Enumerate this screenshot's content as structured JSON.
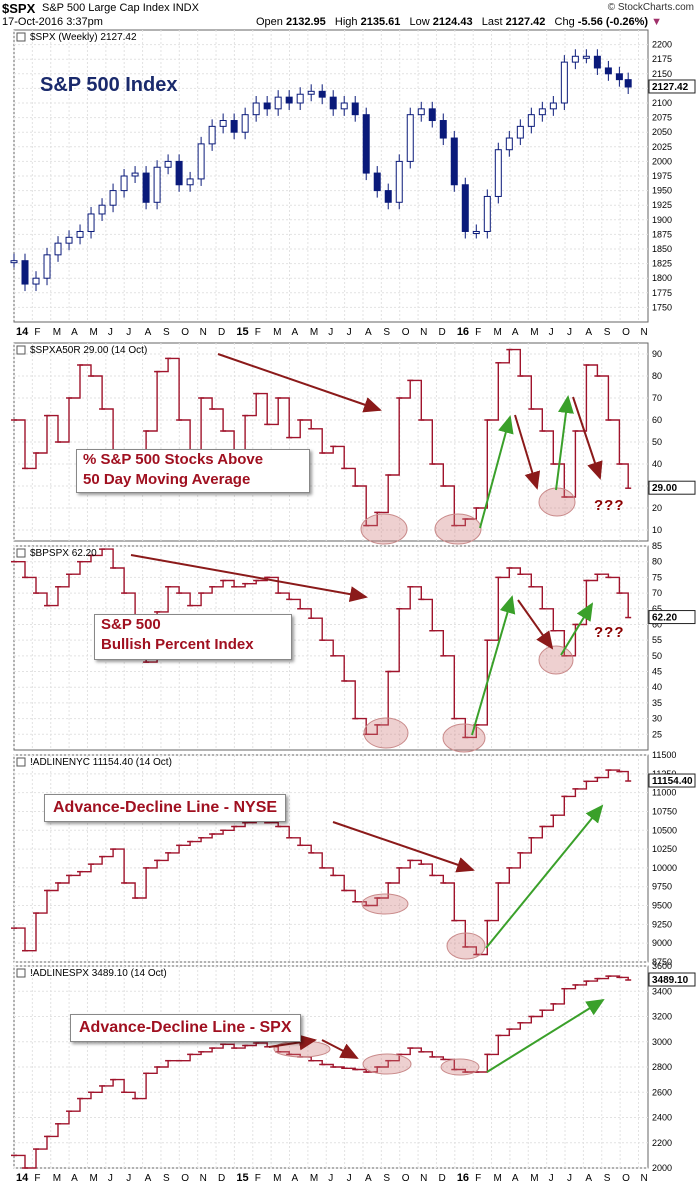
{
  "header": {
    "symbol": "$SPX",
    "name": "S&P 500 Large Cap Index INDX",
    "date": "17-Oct-2016 3:37pm",
    "open_label": "Open",
    "open": "2132.95",
    "high_label": "High",
    "high": "2135.61",
    "low_label": "Low",
    "low": "2124.43",
    "last_label": "Last",
    "last": "2127.42",
    "chg_label": "Chg",
    "chg": "-5.56 (-0.26%)",
    "watermark": "© StockCharts.com"
  },
  "x_axis": {
    "months": [
      "14",
      "F",
      "M",
      "A",
      "M",
      "J",
      "J",
      "A",
      "S",
      "O",
      "N",
      "D",
      "15",
      "F",
      "M",
      "A",
      "M",
      "J",
      "J",
      "A",
      "S",
      "O",
      "N",
      "D",
      "16",
      "F",
      "M",
      "A",
      "M",
      "J",
      "J",
      "A",
      "S",
      "O",
      "N"
    ]
  },
  "panels": {
    "spx": {
      "legend": "$SPX (Weekly) 2127.42",
      "title": "S&P 500 Index",
      "last": "2127.42"
    },
    "spxa50r": {
      "legend": "$SPXA50R 29.00 (14 Oct)",
      "label_line1": "% S&P 500 Stocks Above",
      "label_line2": "50 Day Moving Average",
      "last": "29.00",
      "note": "???"
    },
    "bpspx": {
      "legend": "$BPSPX 62.20",
      "label_line1": "S&P 500",
      "label_line2": "Bullish Percent Index",
      "last": "62.20",
      "note": "???"
    },
    "adnyse": {
      "legend": "!ADLINENYC 11154.40 (14 Oct)",
      "label": "Advance-Decline Line - NYSE",
      "last": "11154.40"
    },
    "adspx": {
      "legend": "!ADLINESPX 3489.10 (14 Oct)",
      "label": "Advance-Decline Line - SPX",
      "last": "3489.10"
    }
  },
  "chart_data": [
    {
      "type": "candlestick",
      "title": "S&P 500 Index",
      "ylim": [
        1725,
        2225
      ],
      "yticks": [
        1750,
        1775,
        1800,
        1825,
        1850,
        1875,
        1900,
        1925,
        1950,
        1975,
        2000,
        2025,
        2050,
        2075,
        2100,
        2125,
        2150,
        2175,
        2200
      ],
      "series": [
        {
          "name": "$SPX (Weekly)",
          "x": [
            2014.0,
            2014.05,
            2014.1,
            2014.15,
            2014.2,
            2014.25,
            2014.3,
            2014.35,
            2014.4,
            2014.45,
            2014.5,
            2014.55,
            2014.6,
            2014.65,
            2014.7,
            2014.75,
            2014.8,
            2014.85,
            2014.9,
            2014.95,
            2015.0,
            2015.05,
            2015.1,
            2015.15,
            2015.2,
            2015.25,
            2015.3,
            2015.35,
            2015.4,
            2015.45,
            2015.5,
            2015.55,
            2015.6,
            2015.65,
            2015.7,
            2015.75,
            2015.8,
            2015.85,
            2015.9,
            2015.95,
            2016.0,
            2016.05,
            2016.1,
            2016.15,
            2016.2,
            2016.25,
            2016.3,
            2016.35,
            2016.4,
            2016.45,
            2016.5,
            2016.55,
            2016.6,
            2016.65,
            2016.7,
            2016.75,
            2016.79
          ],
          "values": [
            1830,
            1790,
            1800,
            1840,
            1860,
            1870,
            1880,
            1910,
            1925,
            1950,
            1975,
            1980,
            1930,
            1990,
            2000,
            1960,
            1970,
            2030,
            2060,
            2070,
            2050,
            2080,
            2100,
            2090,
            2110,
            2100,
            2115,
            2120,
            2110,
            2090,
            2100,
            2080,
            1980,
            1950,
            1930,
            2000,
            2080,
            2090,
            2070,
            2040,
            1960,
            1880,
            1880,
            1940,
            2020,
            2040,
            2060,
            2080,
            2090,
            2100,
            2170,
            2180,
            2180,
            2160,
            2150,
            2140,
            2127.42
          ]
        }
      ]
    },
    {
      "type": "line",
      "title": "% S&P 500 Stocks Above 50 Day Moving Average",
      "ylim": [
        5,
        95
      ],
      "yticks": [
        10,
        20,
        30,
        40,
        50,
        60,
        70,
        80,
        90
      ],
      "series": [
        {
          "name": "$SPXA50R",
          "x": [
            2014.0,
            2014.05,
            2014.1,
            2014.15,
            2014.2,
            2014.25,
            2014.3,
            2014.35,
            2014.4,
            2014.45,
            2014.5,
            2014.55,
            2014.6,
            2014.65,
            2014.7,
            2014.75,
            2014.8,
            2014.85,
            2014.9,
            2014.95,
            2015.0,
            2015.05,
            2015.1,
            2015.15,
            2015.2,
            2015.25,
            2015.3,
            2015.35,
            2015.4,
            2015.45,
            2015.5,
            2015.55,
            2015.6,
            2015.65,
            2015.7,
            2015.75,
            2015.8,
            2015.85,
            2015.9,
            2015.95,
            2016.0,
            2016.05,
            2016.1,
            2016.15,
            2016.2,
            2016.25,
            2016.3,
            2016.35,
            2016.4,
            2016.45,
            2016.5,
            2016.55,
            2016.6,
            2016.65,
            2016.7,
            2016.75,
            2016.79
          ],
          "values": [
            60,
            38,
            45,
            62,
            50,
            70,
            85,
            80,
            65,
            45,
            30,
            40,
            55,
            82,
            88,
            60,
            42,
            70,
            65,
            55,
            40,
            62,
            72,
            58,
            70,
            52,
            60,
            56,
            45,
            48,
            38,
            30,
            12,
            18,
            35,
            70,
            78,
            60,
            40,
            30,
            12,
            15,
            20,
            60,
            86,
            92,
            80,
            65,
            55,
            40,
            25,
            55,
            85,
            80,
            60,
            40,
            29.0
          ]
        }
      ]
    },
    {
      "type": "line",
      "title": "S&P 500 Bullish Percent Index",
      "ylim": [
        20,
        85
      ],
      "yticks": [
        25,
        30,
        35,
        40,
        45,
        50,
        55,
        60,
        65,
        70,
        75,
        80,
        85
      ],
      "series": [
        {
          "name": "$BPSPX",
          "x": [
            2014.0,
            2014.05,
            2014.1,
            2014.15,
            2014.2,
            2014.25,
            2014.3,
            2014.35,
            2014.4,
            2014.45,
            2014.5,
            2014.55,
            2014.6,
            2014.65,
            2014.7,
            2014.75,
            2014.8,
            2014.85,
            2014.9,
            2014.95,
            2015.0,
            2015.05,
            2015.1,
            2015.15,
            2015.2,
            2015.25,
            2015.3,
            2015.35,
            2015.4,
            2015.45,
            2015.5,
            2015.55,
            2015.6,
            2015.65,
            2015.7,
            2015.75,
            2015.8,
            2015.85,
            2015.9,
            2015.95,
            2016.0,
            2016.05,
            2016.1,
            2016.15,
            2016.2,
            2016.25,
            2016.3,
            2016.35,
            2016.4,
            2016.45,
            2016.5,
            2016.55,
            2016.6,
            2016.65,
            2016.7,
            2016.75,
            2016.79
          ],
          "values": [
            80,
            75,
            70,
            66,
            72,
            76,
            80,
            82,
            84,
            78,
            70,
            62,
            48,
            64,
            72,
            70,
            66,
            70,
            72,
            74,
            72,
            73,
            74,
            75,
            70,
            68,
            65,
            62,
            55,
            50,
            42,
            30,
            25,
            28,
            45,
            65,
            72,
            68,
            58,
            50,
            30,
            24,
            28,
            55,
            75,
            78,
            76,
            72,
            65,
            58,
            50,
            60,
            74,
            76,
            75,
            70,
            62.2
          ]
        }
      ]
    },
    {
      "type": "line",
      "title": "Advance-Decline Line - NYSE",
      "ylim": [
        8750,
        11500
      ],
      "yticks": [
        8750,
        9000,
        9250,
        9500,
        9750,
        10000,
        10250,
        10500,
        10750,
        11000,
        11250,
        11500
      ],
      "series": [
        {
          "name": "!ADLINENYC",
          "x": [
            2014.0,
            2014.05,
            2014.1,
            2014.15,
            2014.2,
            2014.25,
            2014.3,
            2014.35,
            2014.4,
            2014.45,
            2014.5,
            2014.55,
            2014.6,
            2014.65,
            2014.7,
            2014.75,
            2014.8,
            2014.85,
            2014.9,
            2014.95,
            2015.0,
            2015.05,
            2015.1,
            2015.15,
            2015.2,
            2015.25,
            2015.3,
            2015.35,
            2015.4,
            2015.45,
            2015.5,
            2015.55,
            2015.6,
            2015.65,
            2015.7,
            2015.75,
            2015.8,
            2015.85,
            2015.9,
            2015.95,
            2016.0,
            2016.05,
            2016.1,
            2016.15,
            2016.2,
            2016.25,
            2016.3,
            2016.35,
            2016.4,
            2016.45,
            2016.5,
            2016.55,
            2016.6,
            2016.65,
            2016.7,
            2016.75,
            2016.79
          ],
          "values": [
            9200,
            8900,
            9400,
            9700,
            9800,
            9900,
            9950,
            10050,
            10150,
            10250,
            9800,
            9600,
            10000,
            10100,
            10200,
            10300,
            10350,
            10400,
            10450,
            10500,
            10550,
            10600,
            10650,
            10600,
            10550,
            10400,
            10300,
            10200,
            10000,
            9900,
            9700,
            9550,
            9500,
            9600,
            9800,
            10000,
            10100,
            10050,
            9900,
            9800,
            9300,
            8950,
            8850,
            9300,
            9800,
            10000,
            10200,
            10400,
            10550,
            10700,
            10950,
            11050,
            11150,
            11200,
            11300,
            11280,
            11154.4
          ]
        }
      ]
    },
    {
      "type": "line",
      "title": "Advance-Decline Line - SPX",
      "ylim": [
        2000,
        3600
      ],
      "yticks": [
        2000,
        2200,
        2400,
        2600,
        2800,
        3000,
        3200,
        3400,
        3600
      ],
      "series": [
        {
          "name": "!ADLINESPX",
          "x": [
            2014.0,
            2014.05,
            2014.1,
            2014.15,
            2014.2,
            2014.25,
            2014.3,
            2014.35,
            2014.4,
            2014.45,
            2014.5,
            2014.55,
            2014.6,
            2014.65,
            2014.7,
            2014.75,
            2014.8,
            2014.85,
            2014.9,
            2014.95,
            2015.0,
            2015.05,
            2015.1,
            2015.15,
            2015.2,
            2015.25,
            2015.3,
            2015.35,
            2015.4,
            2015.45,
            2015.5,
            2015.55,
            2015.6,
            2015.65,
            2015.7,
            2015.75,
            2015.8,
            2015.85,
            2015.9,
            2015.95,
            2016.0,
            2016.05,
            2016.1,
            2016.15,
            2016.2,
            2016.25,
            2016.3,
            2016.35,
            2016.4,
            2016.45,
            2016.5,
            2016.55,
            2016.6,
            2016.65,
            2016.7,
            2016.75,
            2016.79
          ],
          "values": [
            2100,
            2000,
            2150,
            2250,
            2350,
            2450,
            2550,
            2600,
            2650,
            2700,
            2600,
            2550,
            2750,
            2800,
            2850,
            2850,
            2900,
            2920,
            2950,
            2980,
            2950,
            2970,
            2990,
            2960,
            2920,
            2900,
            2880,
            2850,
            2820,
            2800,
            2790,
            2780,
            2760,
            2800,
            2850,
            2900,
            2950,
            2920,
            2880,
            2860,
            2780,
            2760,
            2760,
            2900,
            3050,
            3100,
            3150,
            3200,
            3250,
            3300,
            3420,
            3450,
            3480,
            3500,
            3520,
            3510,
            3489.1
          ]
        }
      ]
    }
  ]
}
